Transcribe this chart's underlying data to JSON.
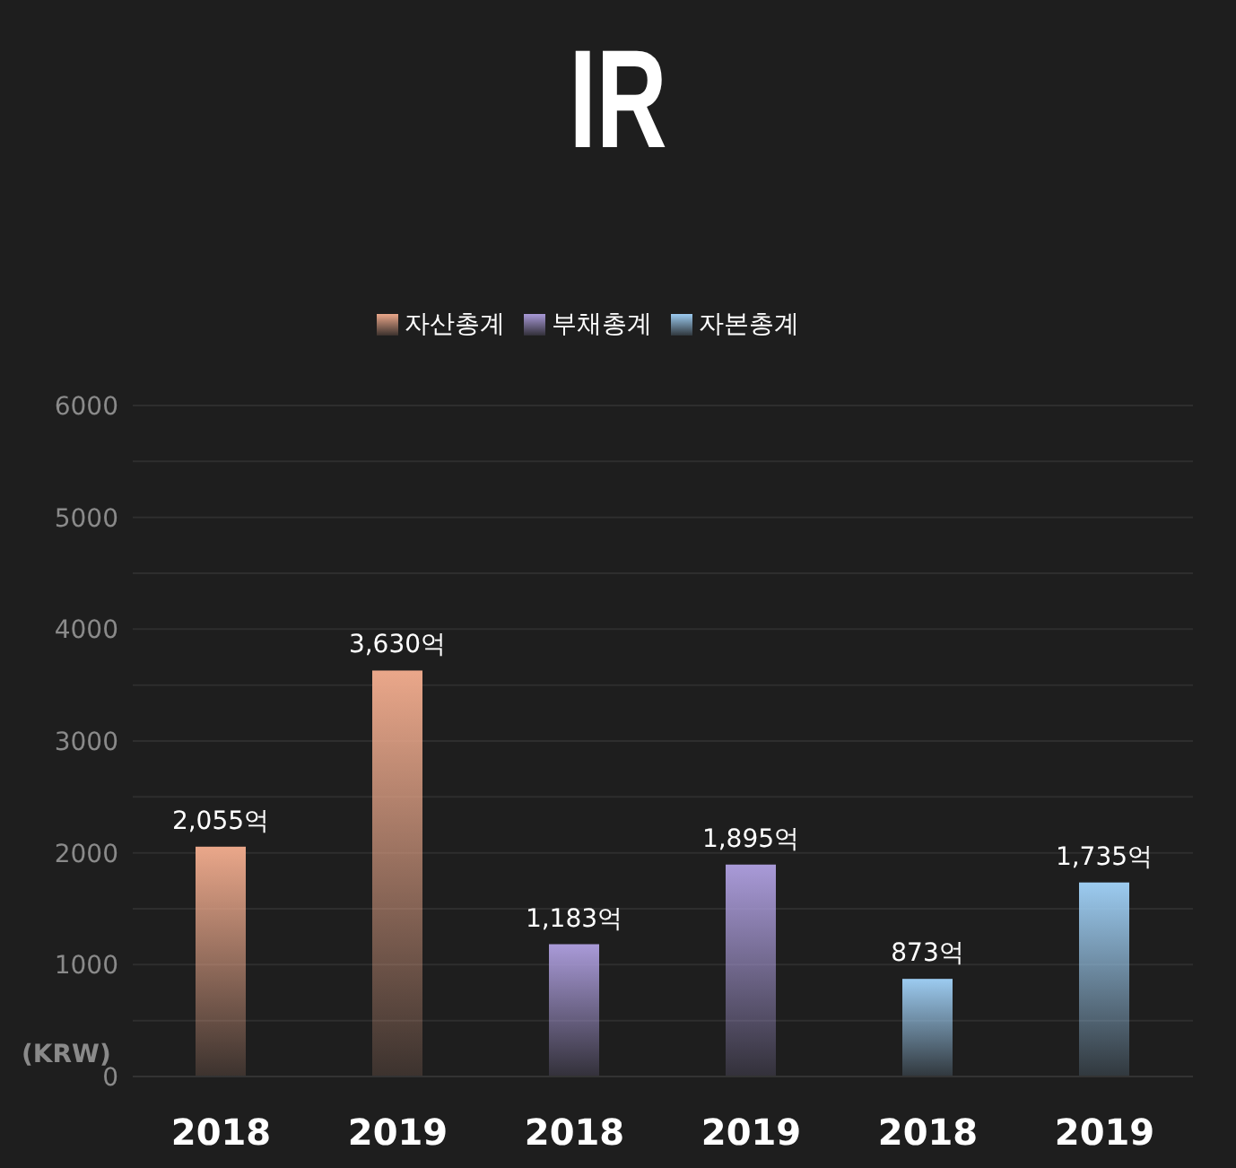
{
  "chart_data": {
    "type": "bar",
    "title": "IR",
    "ylabel": "(KRW)",
    "categories": [
      "2018",
      "2019",
      "2018",
      "2019",
      "2018",
      "2019"
    ],
    "series": [
      {
        "name": "자산총계",
        "color": "#eaa78a",
        "values": [
          2055,
          3630,
          null,
          null,
          null,
          null
        ],
        "value_labels": [
          "2,055억",
          "3,630억",
          null,
          null,
          null,
          null
        ]
      },
      {
        "name": "부채총계",
        "color": "#a99ad8",
        "values": [
          null,
          null,
          1183,
          1895,
          null,
          null
        ],
        "value_labels": [
          null,
          null,
          "1,183억",
          "1,895억",
          null,
          null
        ]
      },
      {
        "name": "자본총계",
        "color": "#9ccbf0",
        "values": [
          null,
          null,
          null,
          null,
          873,
          1735
        ],
        "value_labels": [
          null,
          null,
          null,
          null,
          "873억",
          "1,735억"
        ]
      }
    ],
    "ylim": [
      0,
      6000
    ],
    "yticks": [
      0,
      {
        "value": 500,
        "label": null
      },
      1000,
      {
        "value": 1500,
        "label": null
      },
      2000,
      {
        "value": 2500,
        "label": null
      },
      3000,
      {
        "value": 3500,
        "label": null
      },
      4000,
      {
        "value": 4500,
        "label": null
      },
      5000,
      {
        "value": 5500,
        "label": null
      },
      6000
    ],
    "grid": "y",
    "legend": "top"
  }
}
